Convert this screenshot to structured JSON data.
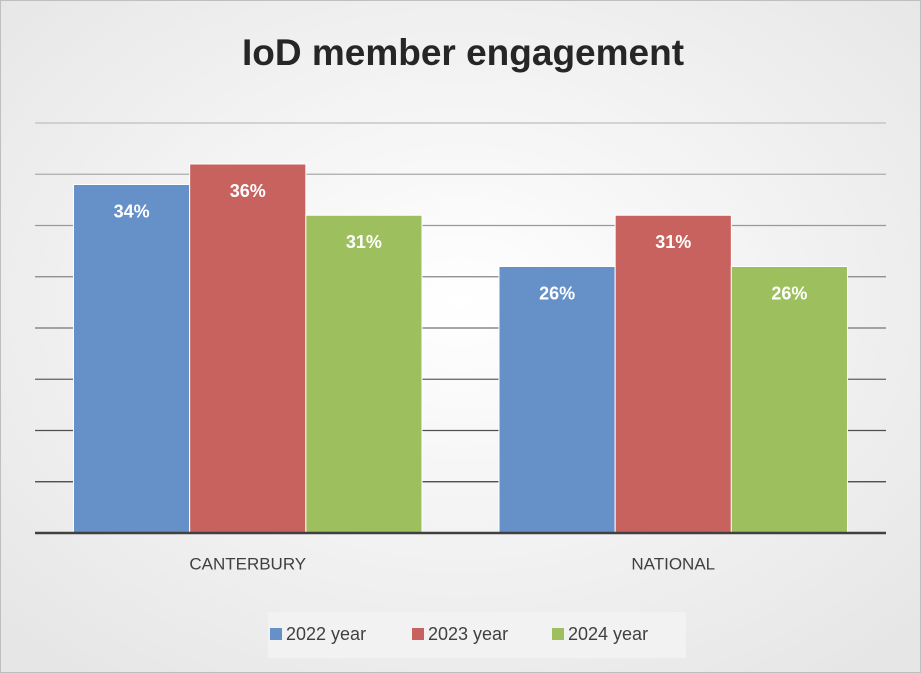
{
  "chart_data": {
    "type": "bar",
    "title": "IoD member engagement",
    "categories": [
      "CANTERBURY",
      "NATIONAL"
    ],
    "series": [
      {
        "name": "2022 year",
        "color": "#6590c8",
        "values": [
          34,
          26
        ],
        "value_labels": [
          "34%",
          "26%"
        ]
      },
      {
        "name": "2023 year",
        "color": "#c8625f",
        "values": [
          36,
          31
        ],
        "value_labels": [
          "36%",
          "31%"
        ]
      },
      {
        "name": "2024 year",
        "color": "#9dbf5e",
        "values": [
          31,
          26
        ],
        "value_labels": [
          "31%",
          "26%"
        ]
      }
    ],
    "ylim": [
      0,
      40
    ],
    "yticks": [
      0,
      5,
      10,
      15,
      20,
      25,
      30,
      35,
      40
    ],
    "grid": true,
    "legend": "bottom"
  }
}
